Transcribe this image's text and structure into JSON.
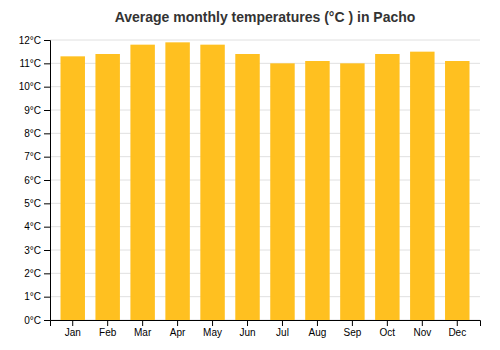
{
  "chart_data": {
    "type": "bar",
    "title": "Average monthly temperatures (°C ) in Pacho",
    "categories": [
      "Jan",
      "Feb",
      "Mar",
      "Apr",
      "May",
      "Jun",
      "Jul",
      "Aug",
      "Sep",
      "Oct",
      "Nov",
      "Dec"
    ],
    "values": [
      11.3,
      11.4,
      11.8,
      11.9,
      11.8,
      11.4,
      11.0,
      11.1,
      11.0,
      11.4,
      11.5,
      11.1
    ],
    "color": "#FFC020",
    "ylim": [
      0,
      12
    ],
    "yticks": [
      {
        "value": 0,
        "label": "0°C"
      },
      {
        "value": 1,
        "label": "1°C"
      },
      {
        "value": 2,
        "label": "2°C"
      },
      {
        "value": 3,
        "label": "3°C"
      },
      {
        "value": 4,
        "label": "4°C"
      },
      {
        "value": 5,
        "label": "5°C"
      },
      {
        "value": 6,
        "label": "6°C"
      },
      {
        "value": 7,
        "label": "7°C"
      },
      {
        "value": 8,
        "label": "8°C"
      },
      {
        "value": 9,
        "label": "9°C"
      },
      {
        "value": 10,
        "label": "10°C"
      },
      {
        "value": 11,
        "label": "11°C"
      },
      {
        "value": 12,
        "label": "12°C"
      }
    ],
    "grid": true
  }
}
